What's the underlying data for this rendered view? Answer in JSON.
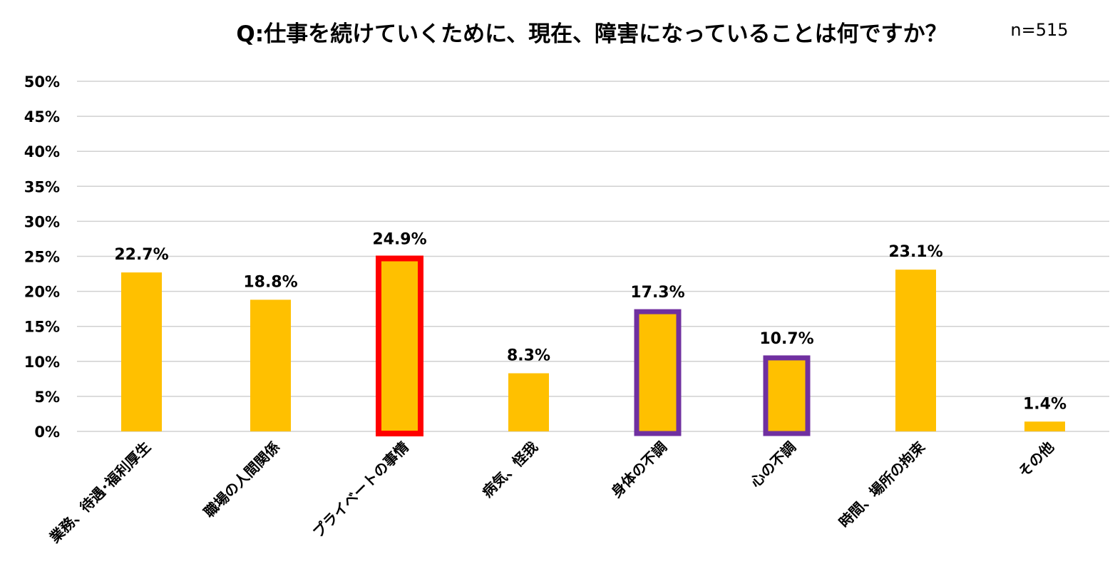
{
  "chart_data": {
    "type": "bar",
    "title": "Q:仕事を続けていくために、現在、障害になっていることは何ですか？",
    "sample_size": "n=515",
    "categories": [
      "業務、待遇･福利厚生",
      "職場の人間関係",
      "プライベートの事情",
      "病気、怪我",
      "身体の不調",
      "心の不調",
      "時間、場所の拘束",
      "その他"
    ],
    "values": [
      22.7,
      18.8,
      24.9,
      8.3,
      17.3,
      10.7,
      23.1,
      1.4
    ],
    "value_labels": [
      "22.7%",
      "18.8%",
      "24.9%",
      "8.3%",
      "17.3%",
      "10.7%",
      "23.1%",
      "1.4%"
    ],
    "highlights": [
      "none",
      "none",
      "red",
      "none",
      "purple",
      "purple",
      "none",
      "none"
    ],
    "ylim": [
      0,
      50
    ],
    "yticks": [
      0,
      5,
      10,
      15,
      20,
      25,
      30,
      35,
      40,
      45,
      50
    ],
    "ytick_labels": [
      "0%",
      "5%",
      "10%",
      "15%",
      "20%",
      "25%",
      "30%",
      "35%",
      "40%",
      "45%",
      "50%"
    ],
    "xlabel": "",
    "ylabel": "",
    "grid": true,
    "colors": {
      "bar": "#FFC000",
      "red_outline": "#FF0000",
      "purple_outline": "#7030A0",
      "grid": "#d0d0d0"
    }
  }
}
